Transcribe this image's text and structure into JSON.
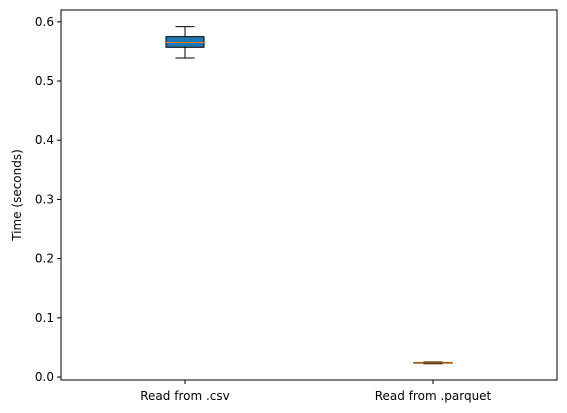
{
  "chart_data": {
    "type": "box",
    "title": "",
    "xlabel": "",
    "ylabel": "Time (seconds)",
    "ylim": [
      -0.005,
      0.62
    ],
    "yticks": [
      0.0,
      0.1,
      0.2,
      0.3,
      0.4,
      0.5,
      0.6
    ],
    "ytick_labels": [
      "0.0",
      "0.1",
      "0.2",
      "0.3",
      "0.4",
      "0.5",
      "0.6"
    ],
    "categories": [
      "Read from .csv",
      "Read from .parquet"
    ],
    "boxes": [
      {
        "label": "Read from .csv",
        "whisker_low": 0.539,
        "q1": 0.557,
        "median": 0.565,
        "q3": 0.575,
        "whisker_high": 0.592,
        "fill": "#1f77b4",
        "median_color": "#ff7f0e"
      },
      {
        "label": "Read from .parquet",
        "whisker_low": 0.0225,
        "q1": 0.0235,
        "median": 0.024,
        "q3": 0.0245,
        "whisker_high": 0.0255,
        "fill": "#1f77b4",
        "median_color": "#ff7f0e"
      }
    ],
    "grid": false,
    "legend": "none"
  }
}
